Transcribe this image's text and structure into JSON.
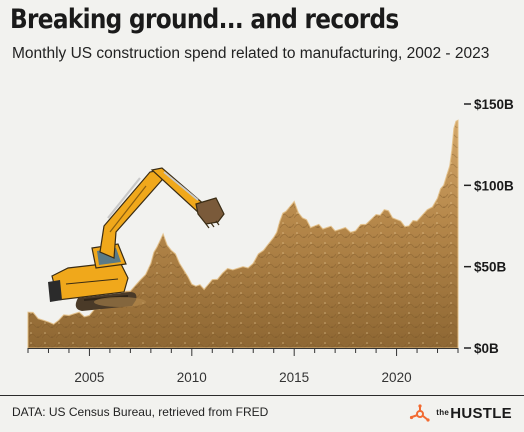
{
  "header": {
    "title": "Breaking ground... and records",
    "subtitle": "Monthly US construction spend related to manufacturing, 2002 - 2023"
  },
  "footer": {
    "source": "DATA: US Census Bureau, retrieved from FRED",
    "brand_prefix": "the",
    "brand_name": "HUSTLE"
  },
  "colors": {
    "background": "#f2f2ef",
    "dirt_dark": "#8a6532",
    "dirt_mid": "#b58a4e",
    "dirt_light": "#d9b27a",
    "excavator_yellow": "#f0a81b",
    "brand_orange": "#f26b32"
  },
  "icons": [
    "excavator-illustration",
    "brand-sprocket-icon"
  ],
  "chart_data": {
    "type": "area",
    "title": "Breaking ground... and records",
    "subtitle": "Monthly US construction spend related to manufacturing, 2002 - 2023",
    "xlabel": "",
    "ylabel": "",
    "xlim": [
      2002,
      2023
    ],
    "ylim": [
      0,
      150
    ],
    "x_ticks": [
      2005,
      2010,
      2015,
      2020
    ],
    "y_ticks": [
      0,
      50,
      100,
      150
    ],
    "y_tick_labels": [
      "$0B",
      "$50B",
      "$100B",
      "$150B"
    ],
    "grid": false,
    "legend": "none",
    "series": [
      {
        "x": [
          2002.0,
          2002.5,
          2003.0,
          2003.5,
          2004.0,
          2004.5,
          2005.0,
          2005.5,
          2006.0,
          2006.5,
          2007.0,
          2007.5,
          2008.0,
          2008.3,
          2008.6,
          2009.0,
          2009.4,
          2009.8,
          2010.2,
          2010.6,
          2011.0,
          2011.5,
          2012.0,
          2012.5,
          2013.0,
          2013.5,
          2014.0,
          2014.3,
          2014.6,
          2015.0,
          2015.4,
          2015.8,
          2016.2,
          2016.6,
          2017.0,
          2017.5,
          2018.0,
          2018.5,
          2019.0,
          2019.4,
          2019.8,
          2020.2,
          2020.6,
          2021.0,
          2021.5,
          2022.0,
          2022.3,
          2022.6,
          2022.8,
          2023.0
        ],
        "values": [
          22,
          18,
          16,
          17,
          20,
          22,
          20,
          24,
          28,
          31,
          35,
          42,
          52,
          62,
          70,
          60,
          52,
          44,
          38,
          36,
          42,
          46,
          48,
          50,
          52,
          60,
          68,
          78,
          84,
          90,
          80,
          74,
          76,
          74,
          72,
          74,
          72,
          76,
          82,
          85,
          80,
          78,
          75,
          78,
          85,
          92,
          100,
          112,
          135,
          140
        ]
      }
    ]
  }
}
